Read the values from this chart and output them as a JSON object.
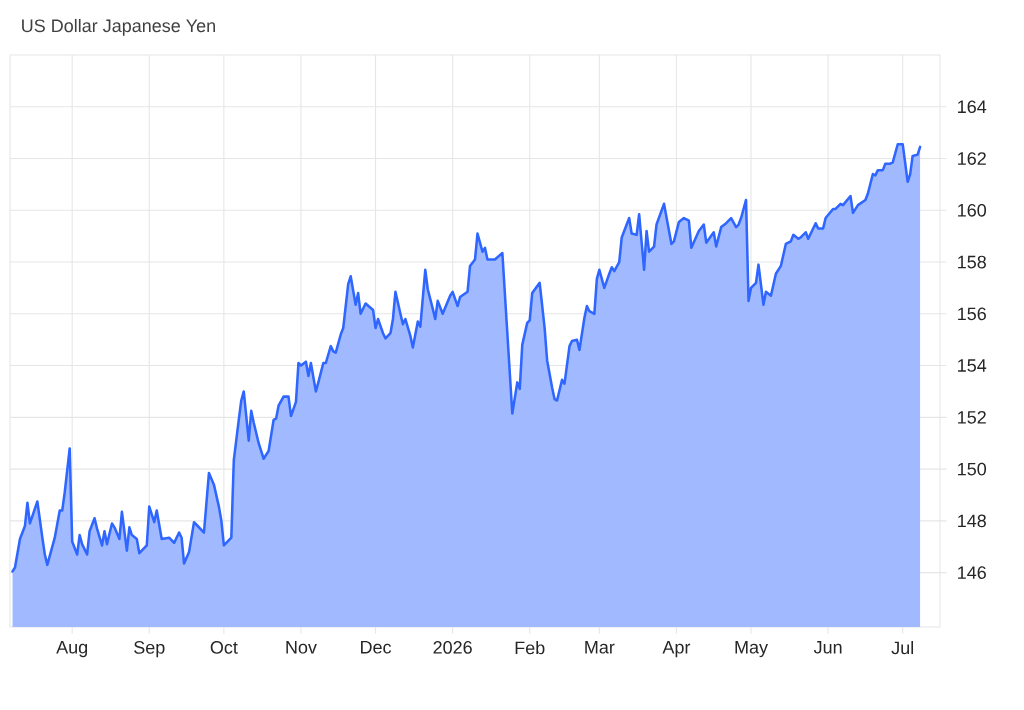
{
  "chart_data": {
    "type": "area",
    "title": "US Dollar Japanese Yen",
    "color": "#2e66ff",
    "grid": true,
    "xlim": [
      "2025-07-07",
      "2026-07-16"
    ],
    "ylim": [
      143.9,
      166
    ],
    "xticks": [
      {
        "value": "2025-08-01",
        "label": "Aug"
      },
      {
        "value": "2025-09-01",
        "label": "Sep"
      },
      {
        "value": "2025-10-01",
        "label": "Oct"
      },
      {
        "value": "2025-11-01",
        "label": "Nov"
      },
      {
        "value": "2025-12-01",
        "label": "Dec"
      },
      {
        "value": "2026-01-01",
        "label": "2026"
      },
      {
        "value": "2026-02-01",
        "label": "Feb"
      },
      {
        "value": "2026-03-01",
        "label": "Mar"
      },
      {
        "value": "2026-04-01",
        "label": "Apr"
      },
      {
        "value": "2026-05-01",
        "label": "May"
      },
      {
        "value": "2026-06-01",
        "label": "Jun"
      },
      {
        "value": "2026-07-01",
        "label": "Jul"
      }
    ],
    "yticks": [
      146,
      148,
      150,
      152,
      154,
      156,
      158,
      160,
      162,
      164
    ],
    "x": [
      "2025-07-08",
      "2025-07-09",
      "2025-07-11",
      "2025-07-13",
      "2025-07-14",
      "2025-07-15",
      "2025-07-18",
      "2025-07-20",
      "2025-07-21",
      "2025-07-22",
      "2025-07-25",
      "2025-07-27",
      "2025-07-28",
      "2025-07-29",
      "2025-07-31",
      "2025-08-01",
      "2025-08-03",
      "2025-08-04",
      "2025-08-05",
      "2025-08-07",
      "2025-08-08",
      "2025-08-10",
      "2025-08-11",
      "2025-08-13",
      "2025-08-14",
      "2025-08-15",
      "2025-08-17",
      "2025-08-18",
      "2025-08-20",
      "2025-08-21",
      "2025-08-23",
      "2025-08-24",
      "2025-08-25",
      "2025-08-27",
      "2025-08-28",
      "2025-08-31",
      "2025-09-01",
      "2025-09-03",
      "2025-09-04",
      "2025-09-06",
      "2025-09-09",
      "2025-09-11",
      "2025-09-13",
      "2025-09-14",
      "2025-09-15",
      "2025-09-17",
      "2025-09-19",
      "2025-09-20",
      "2025-09-23",
      "2025-09-25",
      "2025-09-27",
      "2025-09-29",
      "2025-09-30",
      "2025-10-01",
      "2025-10-04",
      "2025-10-05",
      "2025-10-07",
      "2025-10-08",
      "2025-10-09",
      "2025-10-11",
      "2025-10-12",
      "2025-10-13",
      "2025-10-15",
      "2025-10-17",
      "2025-10-19",
      "2025-10-21",
      "2025-10-22",
      "2025-10-23",
      "2025-10-25",
      "2025-10-27",
      "2025-10-28",
      "2025-10-30",
      "2025-10-31",
      "2025-11-01",
      "2025-11-03",
      "2025-11-04",
      "2025-11-05",
      "2025-11-07",
      "2025-11-08",
      "2025-11-10",
      "2025-11-11",
      "2025-11-13",
      "2025-11-14",
      "2025-11-15",
      "2025-11-17",
      "2025-11-18",
      "2025-11-20",
      "2025-11-21",
      "2025-11-23",
      "2025-11-24",
      "2025-11-25",
      "2025-11-27",
      "2025-11-30",
      "2025-12-01",
      "2025-12-02",
      "2025-12-04",
      "2025-12-05",
      "2025-12-07",
      "2025-12-08",
      "2025-12-09",
      "2025-12-11",
      "2025-12-12",
      "2025-12-13",
      "2025-12-15",
      "2025-12-16",
      "2025-12-18",
      "2025-12-19",
      "2025-12-21",
      "2025-12-22",
      "2025-12-24",
      "2025-12-25",
      "2025-12-26",
      "2025-12-28",
      "2025-12-31",
      "2026-01-01",
      "2026-01-03",
      "2026-01-04",
      "2026-01-07",
      "2026-01-08",
      "2026-01-10",
      "2026-01-11",
      "2026-01-13",
      "2026-01-14",
      "2026-01-15",
      "2026-01-18",
      "2026-01-21",
      "2026-01-25",
      "2026-01-27",
      "2026-01-28",
      "2026-01-29",
      "2026-01-31",
      "2026-02-01",
      "2026-02-02",
      "2026-02-05",
      "2026-02-07",
      "2026-02-08",
      "2026-02-10",
      "2026-02-11",
      "2026-02-12",
      "2026-02-14",
      "2026-02-15",
      "2026-02-17",
      "2026-02-18",
      "2026-02-20",
      "2026-02-21",
      "2026-02-23",
      "2026-02-24",
      "2026-02-25",
      "2026-02-27",
      "2026-02-28",
      "2026-03-01",
      "2026-03-03",
      "2026-03-05",
      "2026-03-06",
      "2026-03-07",
      "2026-03-09",
      "2026-03-10",
      "2026-03-13",
      "2026-03-14",
      "2026-03-16",
      "2026-03-17",
      "2026-03-19",
      "2026-03-20",
      "2026-03-21",
      "2026-03-23",
      "2026-03-24",
      "2026-03-27",
      "2026-03-30",
      "2026-03-31",
      "2026-04-02",
      "2026-04-04",
      "2026-04-06",
      "2026-04-07",
      "2026-04-10",
      "2026-04-12",
      "2026-04-13",
      "2026-04-16",
      "2026-04-17",
      "2026-04-19",
      "2026-04-21",
      "2026-04-23",
      "2026-04-25",
      "2026-04-26",
      "2026-04-27",
      "2026-04-29",
      "2026-04-30",
      "2026-05-01",
      "2026-05-03",
      "2026-05-04",
      "2026-05-06",
      "2026-05-07",
      "2026-05-09",
      "2026-05-11",
      "2026-05-13",
      "2026-05-15",
      "2026-05-17",
      "2026-05-18",
      "2026-05-20",
      "2026-05-21",
      "2026-05-23",
      "2026-05-24",
      "2026-05-27",
      "2026-05-28",
      "2026-05-30",
      "2026-05-31",
      "2026-06-03",
      "2026-06-04",
      "2026-06-06",
      "2026-06-07",
      "2026-06-10",
      "2026-06-11",
      "2026-06-13",
      "2026-06-16",
      "2026-06-17",
      "2026-06-19",
      "2026-06-20",
      "2026-06-21",
      "2026-06-23",
      "2026-06-24",
      "2026-06-26",
      "2026-06-27",
      "2026-06-29",
      "2026-07-01",
      "2026-07-03",
      "2026-07-04",
      "2026-07-05",
      "2026-07-07",
      "2026-07-08"
    ],
    "values": [
      146.05,
      146.2,
      147.3,
      147.8,
      148.7,
      147.9,
      148.75,
      147.35,
      146.7,
      146.3,
      147.35,
      148.4,
      148.4,
      149.1,
      150.8,
      147.2,
      146.7,
      147.45,
      147.1,
      146.7,
      147.6,
      148.1,
      147.7,
      147.05,
      147.6,
      147.1,
      147.9,
      147.75,
      147.3,
      148.35,
      146.85,
      147.75,
      147.45,
      147.3,
      146.75,
      147.05,
      148.55,
      147.95,
      148.4,
      147.3,
      147.35,
      147.15,
      147.55,
      147.35,
      146.35,
      146.8,
      147.95,
      147.85,
      147.55,
      149.85,
      149.4,
      148.55,
      148.0,
      147.05,
      147.35,
      150.35,
      151.9,
      152.65,
      153.0,
      151.1,
      152.25,
      151.8,
      151.0,
      150.4,
      150.7,
      151.9,
      151.95,
      152.45,
      152.8,
      152.8,
      152.05,
      152.6,
      154.1,
      154.0,
      154.15,
      153.6,
      154.1,
      153.0,
      153.35,
      154.1,
      154.1,
      154.75,
      154.55,
      154.5,
      155.2,
      155.45,
      157.15,
      157.45,
      156.35,
      156.8,
      156.0,
      156.4,
      156.15,
      155.45,
      155.8,
      155.25,
      155.05,
      155.25,
      155.8,
      156.85,
      156.0,
      155.6,
      155.8,
      155.15,
      154.7,
      155.7,
      155.5,
      157.7,
      156.95,
      156.2,
      155.8,
      156.5,
      156.0,
      156.7,
      156.85,
      156.3,
      156.65,
      156.85,
      157.85,
      158.1,
      159.1,
      158.4,
      158.55,
      158.1,
      158.1,
      158.35,
      152.15,
      153.35,
      153.1,
      154.8,
      155.65,
      155.75,
      156.8,
      157.2,
      155.45,
      154.2,
      153.15,
      152.7,
      152.65,
      153.45,
      153.3,
      154.75,
      154.95,
      155.0,
      154.6,
      155.85,
      156.3,
      156.1,
      156.0,
      157.35,
      157.7,
      157.0,
      157.55,
      157.8,
      157.65,
      158.0,
      158.95,
      159.7,
      159.1,
      159.05,
      159.85,
      157.7,
      159.2,
      158.4,
      158.6,
      159.45,
      160.25,
      158.7,
      158.8,
      159.55,
      159.7,
      159.6,
      158.55,
      159.2,
      159.45,
      158.75,
      159.15,
      158.6,
      159.35,
      159.5,
      159.7,
      159.35,
      159.45,
      159.7,
      160.4,
      156.5,
      157.0,
      157.2,
      157.9,
      156.35,
      156.85,
      156.7,
      157.55,
      157.85,
      158.7,
      158.8,
      159.05,
      158.9,
      158.95,
      159.15,
      158.9,
      159.5,
      159.3,
      159.3,
      159.7,
      160.05,
      160.05,
      160.25,
      160.2,
      160.55,
      159.9,
      160.2,
      160.4,
      160.65,
      161.4,
      161.35,
      161.55,
      161.55,
      161.8,
      161.8,
      161.85,
      162.55,
      162.55,
      161.1,
      161.4,
      162.1,
      162.15,
      162.45
    ]
  }
}
